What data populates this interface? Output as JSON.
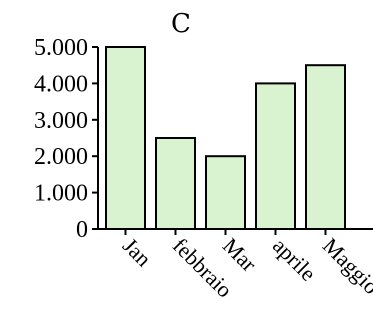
{
  "chart_data": {
    "type": "bar",
    "title": "C",
    "xlabel": "",
    "ylabel": "",
    "categories": [
      "Jan",
      "febbraio",
      "Mar",
      "aprile",
      "Maggio"
    ],
    "values": [
      5000,
      2500,
      2000,
      4000,
      4500
    ],
    "ylim": [
      0,
      5000
    ],
    "yticks": [
      0,
      1000,
      2000,
      3000,
      4000,
      5000
    ],
    "ytick_labels": [
      "0",
      "1.000",
      "2.000",
      "3.000",
      "4.000",
      "5.000"
    ],
    "grid": false,
    "colors": {
      "bar_fill": "#d9f2cf",
      "bar_stroke": "#000000"
    }
  }
}
